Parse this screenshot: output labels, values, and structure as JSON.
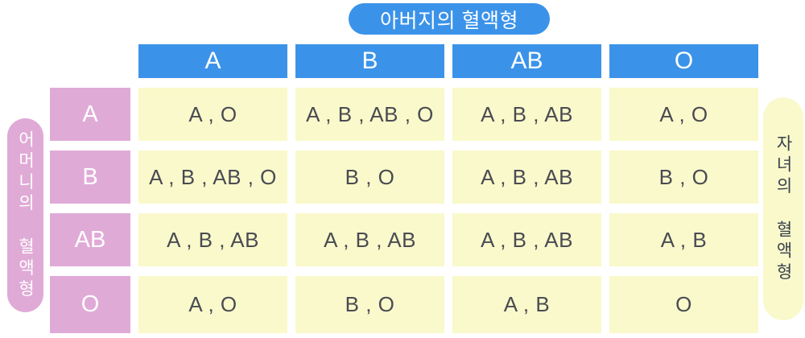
{
  "labels": {
    "father": "아버지의 혈액형",
    "mother": "어머니의 혈액형",
    "children": "자녀의 혈액형"
  },
  "colors": {
    "blue": "#3b93e9",
    "pink": "#e0aad7",
    "yellow": "#f9f9cb",
    "cell_text": "#4a4b52",
    "pill_text_dark": "#3a414d",
    "pill_text_light": "#ffffff"
  },
  "table": {
    "col_headers": [
      "A",
      "B",
      "AB",
      "O"
    ],
    "rows": [
      {
        "header": "A",
        "cells": [
          "A , O",
          "A , B , AB , O",
          "A , B , AB",
          "A , O"
        ]
      },
      {
        "header": "B",
        "cells": [
          "A , B , AB , O",
          "B , O",
          "A , B , AB",
          "B , O"
        ]
      },
      {
        "header": "AB",
        "cells": [
          "A , B , AB",
          "A , B , AB",
          "A , B , AB",
          "A , B"
        ]
      },
      {
        "header": "O",
        "cells": [
          "A , O",
          "B , O",
          "A , B",
          "O"
        ]
      }
    ]
  }
}
